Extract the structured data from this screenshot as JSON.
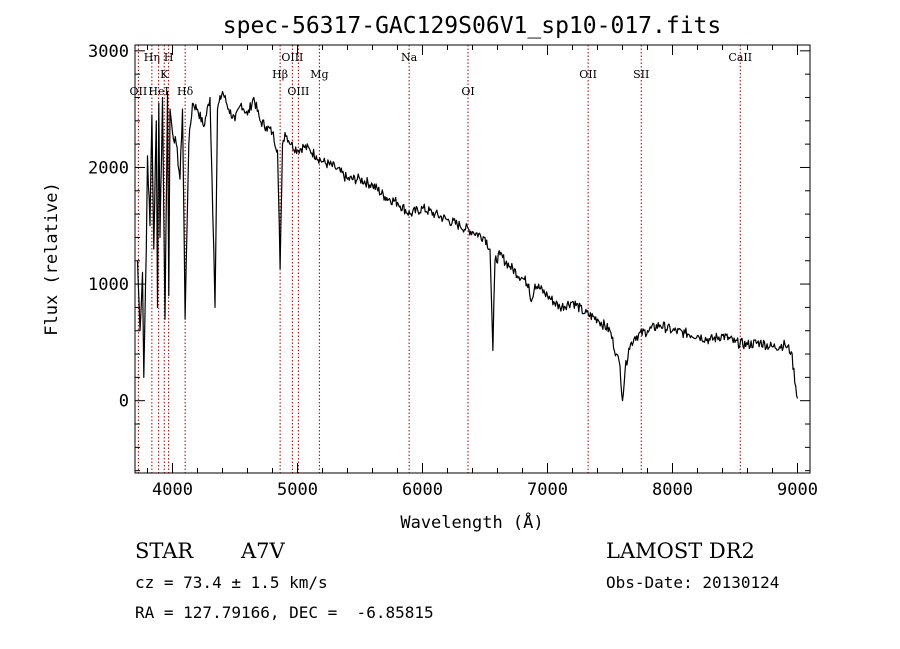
{
  "chart_data": {
    "type": "line",
    "title": "spec-56317-GAC129S06V1_sp10-017.fits",
    "xlabel": "Wavelength (Å)",
    "ylabel": "Flux (relative)",
    "xlim": [
      3700,
      9100
    ],
    "ylim": [
      -620,
      3050
    ],
    "xticks": [
      4000,
      5000,
      6000,
      7000,
      8000,
      9000
    ],
    "yticks": [
      0,
      1000,
      2000,
      3000
    ],
    "grid": false,
    "series": [
      {
        "x": [
          3720,
          3740,
          3760,
          3770,
          3790,
          3800,
          3820,
          3835,
          3850,
          3870,
          3880,
          3890,
          3900,
          3920,
          3940,
          3960,
          3970,
          3980,
          4000,
          4030,
          4060,
          4080,
          4101,
          4130,
          4160,
          4200,
          4250,
          4300,
          4330,
          4340,
          4360,
          4400,
          4450,
          4500,
          4550,
          4600,
          4650,
          4700,
          4750,
          4800,
          4840,
          4861,
          4880,
          4900,
          4950,
          5000,
          5050,
          5100,
          5150,
          5200,
          5300,
          5400,
          5500,
          5600,
          5700,
          5800,
          5900,
          6000,
          6100,
          6200,
          6300,
          6400,
          6500,
          6540,
          6563,
          6580,
          6620,
          6700,
          6800,
          6850,
          6870,
          6900,
          7000,
          7100,
          7200,
          7300,
          7400,
          7500,
          7550,
          7580,
          7600,
          7620,
          7650,
          7700,
          7800,
          7900,
          8000,
          8100,
          8200,
          8300,
          8400,
          8500,
          8600,
          8700,
          8800,
          8900,
          8950,
          9000
        ],
        "y": [
          1200,
          600,
          1100,
          200,
          1300,
          2100,
          1500,
          2450,
          1300,
          2400,
          800,
          2550,
          1400,
          2600,
          700,
          2650,
          900,
          2500,
          2300,
          2200,
          1900,
          2500,
          700,
          2200,
          2550,
          2500,
          2350,
          2600,
          1300,
          800,
          2500,
          2650,
          2500,
          2400,
          2550,
          2450,
          2600,
          2400,
          2350,
          2300,
          2150,
          1130,
          2200,
          2300,
          2200,
          2150,
          2180,
          2150,
          2100,
          2050,
          2000,
          1900,
          1900,
          1850,
          1750,
          1700,
          1600,
          1650,
          1600,
          1550,
          1500,
          1450,
          1400,
          1300,
          430,
          1200,
          1250,
          1150,
          1050,
          1000,
          850,
          1000,
          900,
          800,
          850,
          750,
          700,
          600,
          400,
          300,
          0,
          250,
          450,
          550,
          600,
          650,
          600,
          580,
          560,
          520,
          560,
          500,
          480,
          500,
          460,
          480,
          420,
          20
        ]
      }
    ],
    "lines": [
      {
        "label": "OII",
        "x": 3727,
        "row": 3
      },
      {
        "label": "Hη",
        "x": 3835,
        "row": 1
      },
      {
        "label": "HeI",
        "x": 3889,
        "row": 3
      },
      {
        "label": "K",
        "x": 3934,
        "row": 2
      },
      {
        "label": "H",
        "x": 3969,
        "row": 1
      },
      {
        "label": "Hδ",
        "x": 4101,
        "row": 3
      },
      {
        "label": "Hβ",
        "x": 4861,
        "row": 2
      },
      {
        "label": "OIII",
        "x": 4959,
        "row": 1
      },
      {
        "label": "OIII",
        "x": 5007,
        "row": 3
      },
      {
        "label": "Mg",
        "x": 5175,
        "row": 2
      },
      {
        "label": "Na",
        "x": 5893,
        "row": 1
      },
      {
        "label": "OI",
        "x": 6364,
        "row": 3
      },
      {
        "label": "OII",
        "x": 7325,
        "row": 2
      },
      {
        "label": "SII",
        "x": 7750,
        "row": 2
      },
      {
        "label": "CaII",
        "x": 8542,
        "row": 1
      }
    ]
  },
  "info": {
    "object_class": "STAR",
    "subclass": "A7V",
    "survey": "LAMOST DR2",
    "cz": "cz = 73.4 ± 1.5 km/s",
    "obs_date": "Obs-Date: 20130124",
    "coords": "RA = 127.79166, DEC =  -6.85815"
  }
}
